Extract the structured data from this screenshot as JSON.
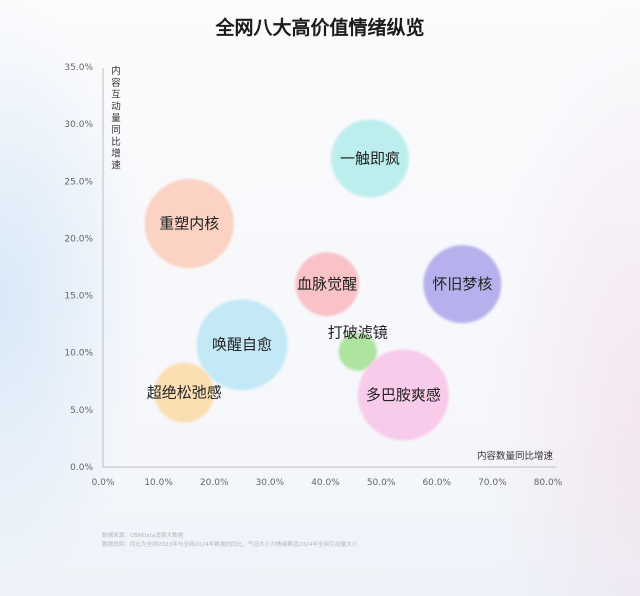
{
  "chart_data": {
    "type": "bubble",
    "title": "全网八大高价值情绪纵览",
    "xlabel": "内容数量同比增速",
    "ylabel": "内容互动量同比增速",
    "xlim": [
      0,
      80
    ],
    "ylim": [
      0,
      35
    ],
    "x_ticks": [
      "0.0%",
      "10.0%",
      "20.0%",
      "30.0%",
      "40.0%",
      "50.0%",
      "60.0%",
      "70.0%",
      "80.0%"
    ],
    "y_ticks": [
      "0.0%",
      "5.0%",
      "10.0%",
      "15.0%",
      "20.0%",
      "25.0%",
      "30.0%",
      "35.0%"
    ],
    "grid": false,
    "points": [
      {
        "label": "一触即疯",
        "x": 48.0,
        "y": 27.0,
        "size": 1.0,
        "color": "#bdeeee"
      },
      {
        "label": "重塑内核",
        "x": 15.5,
        "y": 21.3,
        "size": 1.31,
        "color": "#fbd2c3"
      },
      {
        "label": "血脉觉醒",
        "x": 40.3,
        "y": 16.0,
        "size": 0.67,
        "color": "#f9c2c7"
      },
      {
        "label": "怀旧梦核",
        "x": 64.6,
        "y": 16.0,
        "size": 1.0,
        "color": "#b6b1ec"
      },
      {
        "label": "唤醒自愈",
        "x": 25.0,
        "y": 10.7,
        "size": 1.36,
        "color": "#c3e9f6"
      },
      {
        "label": "打破滤镜",
        "x": 45.8,
        "y": 10.1,
        "size": 0.24,
        "color": "#aee3a0"
      },
      {
        "label": "超绝松弛感",
        "x": 14.6,
        "y": 6.5,
        "size": 0.59,
        "color": "#fbdfb2"
      },
      {
        "label": "多巴胺爽感",
        "x": 54.0,
        "y": 6.3,
        "size": 1.36,
        "color": "#f8cbea"
      }
    ]
  },
  "footnotes": [
    "数据来源：CBNData消费大数据",
    "数据说明：同比为全网2023年与全网2024年数据的同比，气泡大小为情绪赛道2024年全网互动量大小"
  ]
}
